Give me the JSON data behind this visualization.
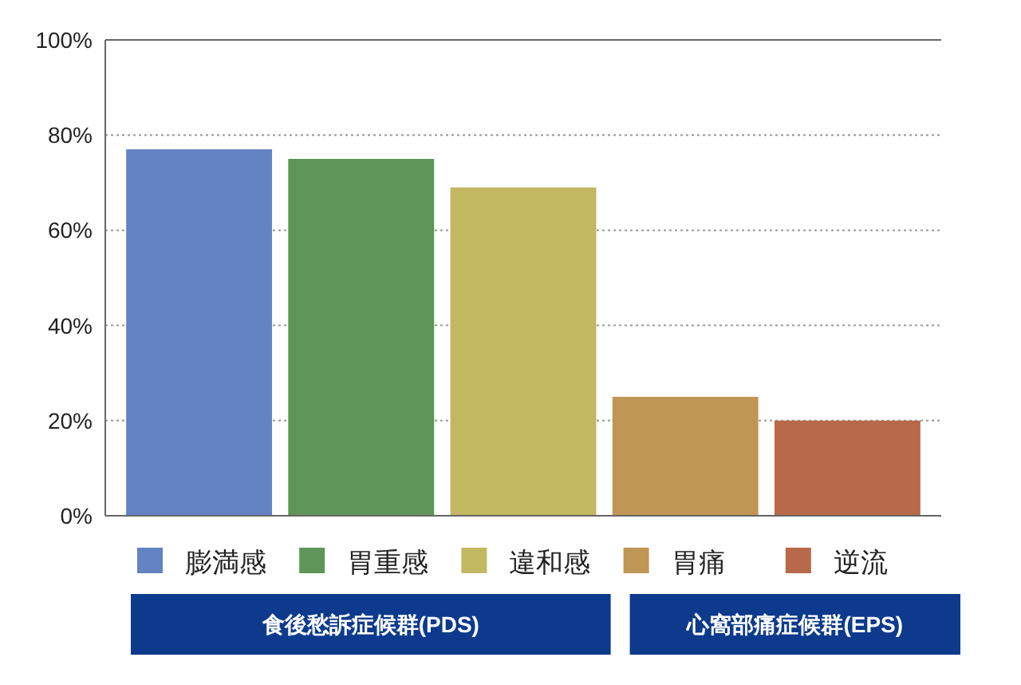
{
  "chart_data": {
    "type": "bar",
    "categories": [
      null,
      null,
      null,
      null,
      null
    ],
    "series": [
      {
        "name": "膨満感",
        "color": "#6383c2",
        "values": [
          77,
          null,
          null,
          null,
          null
        ]
      },
      {
        "name": "胃重感",
        "color": "#5e9558",
        "values": [
          null,
          75,
          null,
          null,
          null
        ]
      },
      {
        "name": "違和感",
        "color": "#c2b862",
        "values": [
          null,
          null,
          69,
          null,
          null
        ]
      },
      {
        "name": "胃痛",
        "color": "#c09655",
        "values": [
          null,
          null,
          null,
          25,
          null
        ]
      },
      {
        "name": "逆流",
        "color": "#b8694a",
        "values": [
          null,
          null,
          null,
          null,
          20
        ]
      }
    ],
    "ylim": [
      0,
      100
    ],
    "yticks": [
      {
        "value": 0,
        "label": "0%"
      },
      {
        "value": 20,
        "label": "20%"
      },
      {
        "value": 40,
        "label": "40%"
      },
      {
        "value": 60,
        "label": "60%"
      },
      {
        "value": 80,
        "label": "80%"
      },
      {
        "value": 100,
        "label": "100%"
      }
    ],
    "grid": "y",
    "legend": "bottom",
    "annotations": [
      "食後愁訴症候群(PDS)",
      "心窩部痛症候群(EPS)"
    ]
  }
}
